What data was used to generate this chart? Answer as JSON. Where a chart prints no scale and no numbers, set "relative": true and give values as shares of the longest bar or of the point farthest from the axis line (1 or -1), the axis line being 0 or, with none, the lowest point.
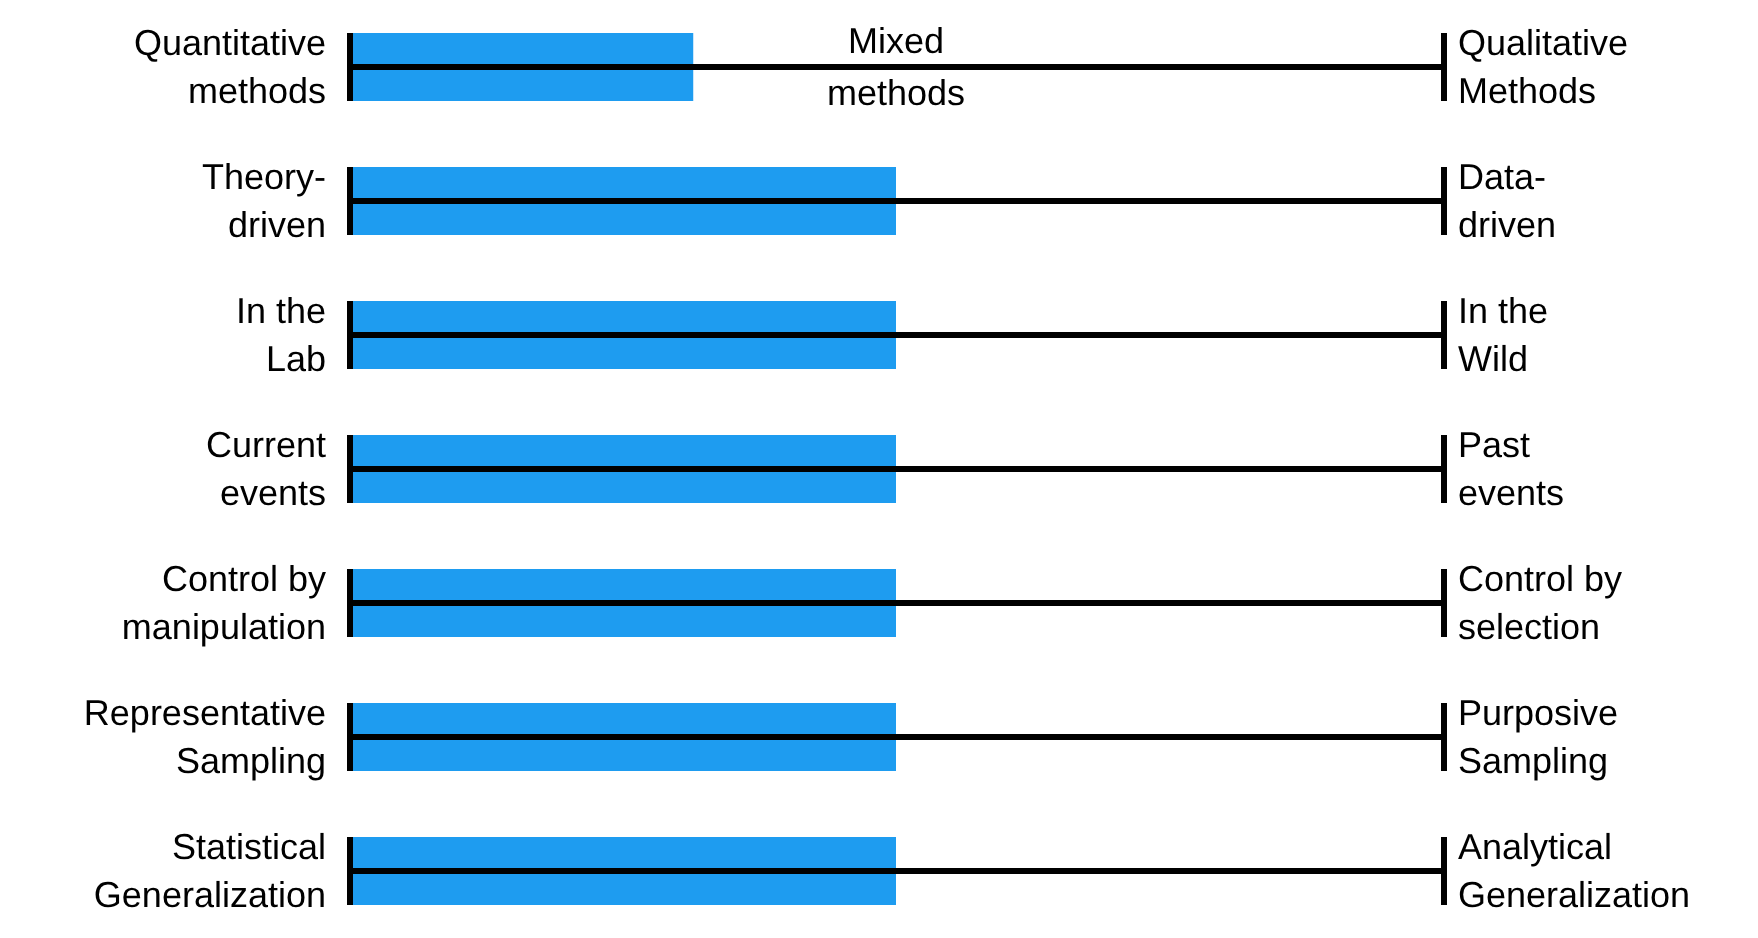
{
  "chart_data": {
    "type": "bar",
    "orientation": "horizontal",
    "relative": true,
    "categories": [
      "Quantitative\nmethods",
      "Theory-\ndriven",
      "In the\nLab",
      "Current\nevents",
      "Control by\nmanipulation",
      "Representative\nSampling",
      "Statistical\nGeneralization"
    ],
    "values": [
      0.63,
      1,
      1,
      1,
      1,
      1,
      1
    ],
    "color": "#1e9cf0",
    "grid": true,
    "annotations": [
      "Mixed\nmethods",
      "Qualitative\nMethods",
      "Data-\ndriven",
      "In the\nWild",
      "Past\nevents",
      "Control by\nselection",
      "Purposive\nSampling",
      "Analytical\nGeneralization"
    ]
  }
}
